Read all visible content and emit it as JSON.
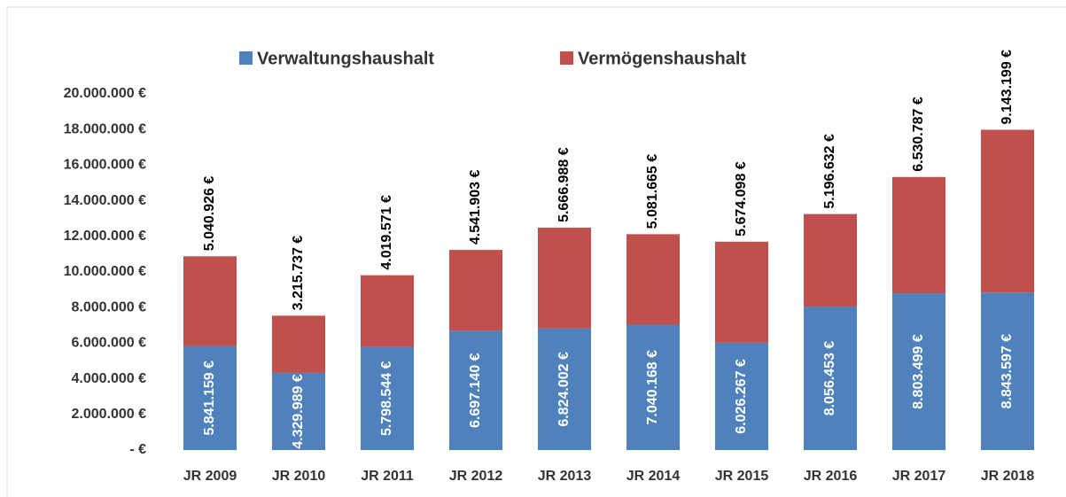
{
  "chart_data": {
    "type": "stacked_bar",
    "categories": [
      "JR 2009",
      "JR 2010",
      "JR 2011",
      "JR 2012",
      "JR 2013",
      "JR 2014",
      "JR 2015",
      "JR 2016",
      "JR 2017",
      "JR 2018"
    ],
    "series": [
      {
        "name": "Verwaltungshaushalt",
        "color": "#4f81bd",
        "values": [
          5841159,
          4329989,
          5798544,
          6697140,
          6824002,
          7040168,
          6026267,
          8056453,
          8803499,
          8843597
        ],
        "value_labels": [
          "5.841.159 €",
          "4.329.989 €",
          "5.798.544 €",
          "6.697.140 €",
          "6.824.002 €",
          "7.040.168 €",
          "6.026.267 €",
          "8.056.453 €",
          "8.803.499 €",
          "8.843.597 €"
        ]
      },
      {
        "name": "Vermögenshaushalt",
        "color": "#c0504d",
        "values": [
          5040926,
          3215737,
          4019571,
          4541903,
          5666988,
          5081665,
          5674098,
          5196632,
          6530787,
          9143199
        ],
        "value_labels": [
          "5.040.926 €",
          "3.215.737 €",
          "4.019.571 €",
          "4.541.903 €",
          "5.666.988 €",
          "5.081.665 €",
          "5.674.098 €",
          "5.196.632 €",
          "6.530.787 €",
          "9.143.199 €"
        ]
      }
    ],
    "ylim": [
      0,
      20000000
    ],
    "yticks": [
      {
        "value": 0,
        "label": "-   €"
      },
      {
        "value": 2000000,
        "label": "2.000.000 €"
      },
      {
        "value": 4000000,
        "label": "4.000.000 €"
      },
      {
        "value": 6000000,
        "label": "6.000.000 €"
      },
      {
        "value": 8000000,
        "label": "8.000.000 €"
      },
      {
        "value": 10000000,
        "label": "10.000.000 €"
      },
      {
        "value": 12000000,
        "label": "12.000.000 €"
      },
      {
        "value": 14000000,
        "label": "14.000.000 €"
      },
      {
        "value": 16000000,
        "label": "16.000.000 €"
      },
      {
        "value": 18000000,
        "label": "18.000.000 €"
      },
      {
        "value": 20000000,
        "label": "20.000.000 €"
      }
    ],
    "grid": false
  }
}
